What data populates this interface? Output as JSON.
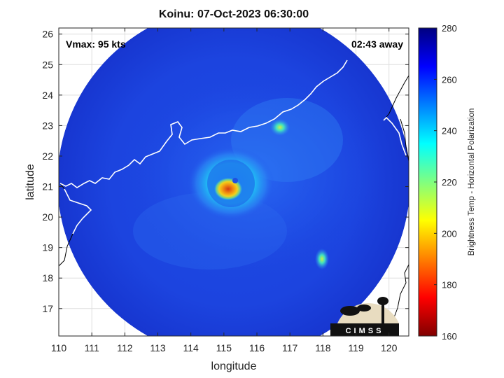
{
  "title": "Koinu: 07-Oct-2023 06:30:00",
  "annotations": {
    "vmax": "Vmax: 95 kts",
    "time_away": "02:43 away"
  },
  "logo": {
    "text": "CIMSS"
  },
  "map": {
    "xlabel": "longitude",
    "ylabel": "latitude",
    "xlim": [
      110,
      120.6
    ],
    "ylim": [
      16.1,
      26.2
    ],
    "xticks": [
      110,
      111,
      112,
      113,
      114,
      115,
      116,
      117,
      118,
      119,
      120
    ],
    "yticks": [
      17,
      18,
      19,
      20,
      21,
      22,
      23,
      24,
      25,
      26
    ],
    "grid": true,
    "swath_center": [
      115.4,
      20.9
    ],
    "eye_center": [
      115.2,
      20.9
    ],
    "colorbar": {
      "label": "Brightness Temp - Horizontal Polarization",
      "range": [
        160,
        280
      ],
      "ticks": [
        160,
        180,
        200,
        220,
        240,
        260,
        280
      ]
    },
    "colors": {
      "background_cold": "#1a3cd8",
      "coastline": "#ffffff",
      "border": "#000000"
    }
  }
}
